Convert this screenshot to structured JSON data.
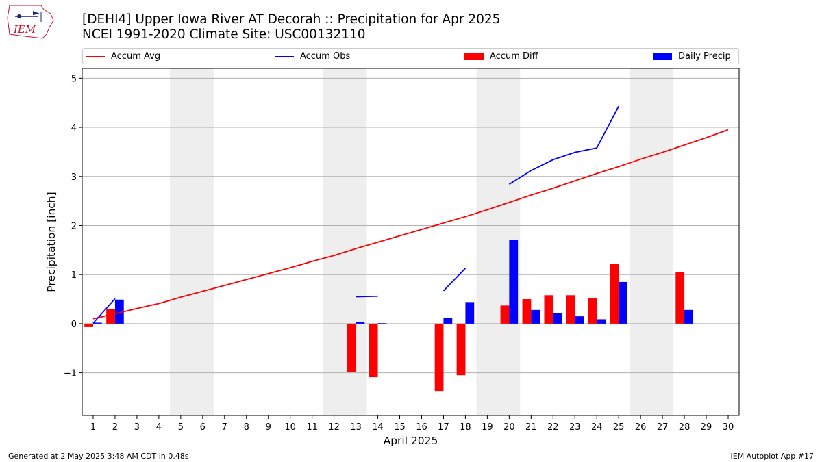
{
  "header": {
    "title_line1": "[DEHI4] Upper Iowa River  AT Decorah :: Precipitation for Apr 2025",
    "title_line2": "NCEI 1991-2020 Climate Site: USC00132110",
    "logo_text": "IEM"
  },
  "legend": {
    "items": [
      {
        "label": "Accum Avg",
        "kind": "line",
        "color": "#ff0000"
      },
      {
        "label": "Accum Obs",
        "kind": "line",
        "color": "#0000ff"
      },
      {
        "label": "Accum Diff",
        "kind": "bar",
        "color": "#ff0000"
      },
      {
        "label": "Daily Precip",
        "kind": "bar",
        "color": "#0000ff"
      }
    ],
    "placement": "top, above plot, spanning width"
  },
  "footer": {
    "left": "Generated at 2 May 2025 3:48 AM CDT in 0.48s",
    "right": "IEM Autoplot App #17"
  },
  "chart_data": {
    "type": "bar",
    "xlabel": "April 2025",
    "ylabel": "Precipitation [inch]",
    "xlim": [
      0.5,
      30.5
    ],
    "ylim": [
      -1.87,
      5.2
    ],
    "yticks": [
      -1,
      0,
      1,
      2,
      3,
      4,
      5
    ],
    "ytick_labels": [
      "−1",
      "0",
      "1",
      "2",
      "3",
      "4",
      "5"
    ],
    "xticks": [
      1,
      2,
      3,
      4,
      5,
      6,
      7,
      8,
      9,
      10,
      11,
      12,
      13,
      14,
      15,
      16,
      17,
      18,
      19,
      20,
      21,
      22,
      23,
      24,
      25,
      26,
      27,
      28,
      29,
      30
    ],
    "grid": "horizontal",
    "weekend_shading": [
      [
        4.5,
        6.5
      ],
      [
        11.5,
        13.5
      ],
      [
        18.5,
        20.5
      ],
      [
        25.5,
        27.5
      ]
    ],
    "colors": {
      "avg": "#ff0000",
      "obs": "#0000ff",
      "diff": "#ff0000",
      "daily": "#0000ff",
      "weekend": "#eeeeee",
      "grid": "#b0b0b0"
    },
    "series": [
      {
        "name": "Accum Avg",
        "kind": "line",
        "x": [
          1,
          2,
          3,
          4,
          5,
          6,
          7,
          8,
          9,
          10,
          11,
          12,
          13,
          14,
          15,
          16,
          17,
          18,
          19,
          20,
          21,
          22,
          23,
          24,
          25,
          26,
          27,
          28,
          29,
          30
        ],
        "values": [
          0.1,
          0.2,
          0.31,
          0.41,
          0.54,
          0.66,
          0.78,
          0.9,
          1.02,
          1.14,
          1.27,
          1.39,
          1.53,
          1.66,
          1.79,
          1.92,
          2.05,
          2.18,
          2.32,
          2.47,
          2.62,
          2.76,
          2.91,
          3.06,
          3.2,
          3.35,
          3.49,
          3.64,
          3.79,
          3.95
        ]
      },
      {
        "name": "Accum Obs",
        "kind": "line",
        "segments": [
          {
            "x": [
              1,
              2
            ],
            "values": [
              0.01,
              0.51
            ]
          },
          {
            "x": [
              13,
              14
            ],
            "values": [
              0.55,
              0.56
            ]
          },
          {
            "x": [
              17,
              18
            ],
            "values": [
              0.67,
              1.13
            ]
          },
          {
            "x": [
              20,
              21,
              22,
              23,
              24,
              25
            ],
            "values": [
              2.84,
              3.12,
              3.34,
              3.49,
              3.58,
              4.43
            ]
          }
        ]
      },
      {
        "name": "Accum Diff",
        "kind": "bar",
        "x": [
          1,
          2,
          13,
          14,
          17,
          18,
          20,
          21,
          22,
          23,
          24,
          25,
          28
        ],
        "values": [
          -0.07,
          0.3,
          -0.98,
          -1.09,
          -1.37,
          -1.05,
          0.37,
          0.5,
          0.58,
          0.58,
          0.52,
          1.22,
          1.05
        ]
      },
      {
        "name": "Daily Precip",
        "kind": "bar",
        "x": [
          1,
          2,
          13,
          14,
          17,
          18,
          20,
          21,
          22,
          23,
          24,
          25,
          28
        ],
        "values": [
          0.02,
          0.49,
          0.04,
          0.01,
          0.12,
          0.44,
          1.71,
          0.28,
          0.22,
          0.15,
          0.09,
          0.85,
          0.28
        ]
      }
    ]
  }
}
